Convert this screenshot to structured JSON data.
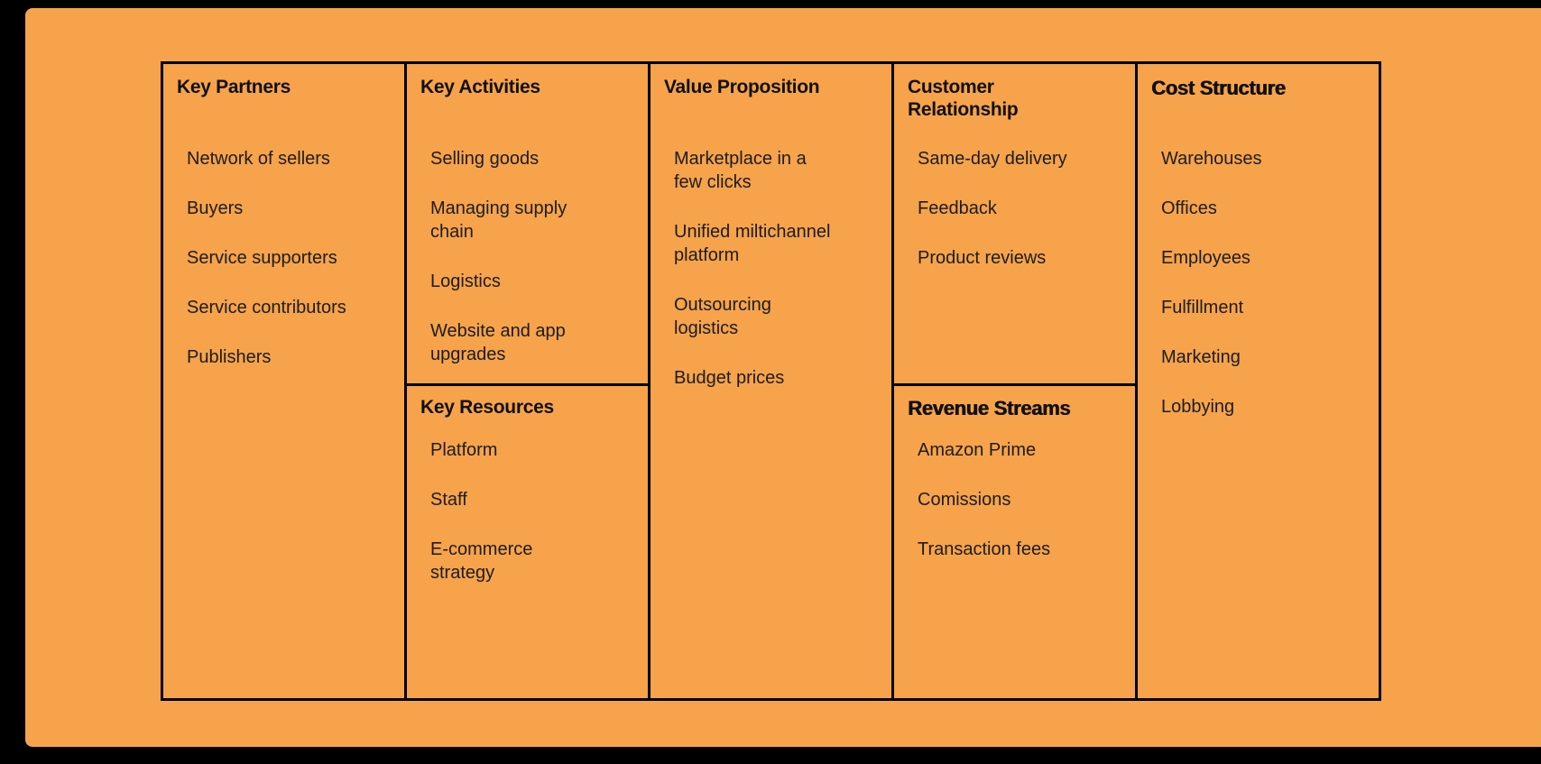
{
  "colors": {
    "background_outer": "#000000",
    "background_panel": "#F6A34C",
    "border": "#000000",
    "text": "#1c1c1c"
  },
  "sections": {
    "key_partners": {
      "title": "Key Partners",
      "items": [
        "Network of sellers",
        "Buyers",
        "Service supporters",
        "Service contributors",
        "Publishers"
      ]
    },
    "key_activities": {
      "title": "Key Activities",
      "items": [
        "Selling goods",
        "Managing supply chain",
        "Logistics",
        "Website and app upgrades"
      ]
    },
    "key_resources": {
      "title": "Key Resources",
      "items": [
        "Platform",
        "Staff",
        "E-commerce strategy"
      ]
    },
    "value_proposition": {
      "title": "Value Proposition",
      "items": [
        "Marketplace in a few clicks",
        "Unified miltichannel platform",
        "Outsourcing logistics",
        "Budget prices"
      ]
    },
    "customer_relationship": {
      "title": "Customer Relationship",
      "items": [
        "Same-day delivery",
        "Feedback",
        "Product reviews"
      ]
    },
    "revenue_streams": {
      "title": "Revenue Streams",
      "items": [
        "Amazon Prime",
        "Comissions",
        "Transaction fees"
      ]
    },
    "cost_structure": {
      "title": "Cost Structure",
      "items": [
        "Warehouses",
        "Offices",
        "Employees",
        "Fulfillment",
        "Marketing",
        "Lobbying"
      ]
    }
  }
}
